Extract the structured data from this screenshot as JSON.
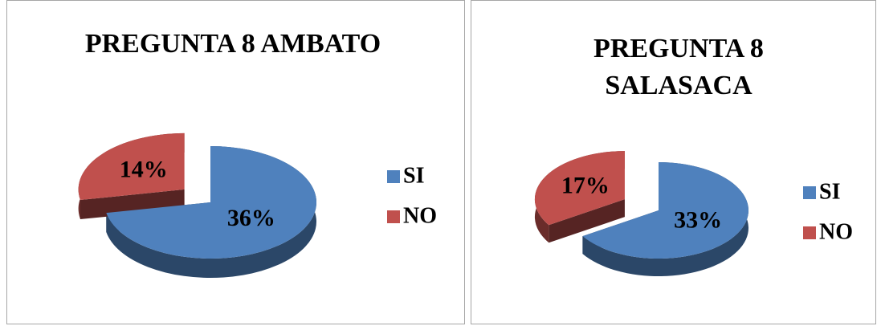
{
  "chart_data": [
    {
      "type": "pie",
      "title": "PREGUNTA 8 AMBATO",
      "categories": [
        "SI",
        "NO"
      ],
      "values": [
        36,
        14
      ],
      "value_labels": [
        "36%",
        "14%"
      ],
      "colors": [
        "#4f81bd",
        "#c0504d"
      ]
    },
    {
      "type": "pie",
      "title": "PREGUNTA 8 SALASACA",
      "categories": [
        "SI",
        "NO"
      ],
      "values": [
        33,
        17
      ],
      "value_labels": [
        "33%",
        "17%"
      ],
      "colors": [
        "#4f81bd",
        "#c0504d"
      ]
    }
  ]
}
